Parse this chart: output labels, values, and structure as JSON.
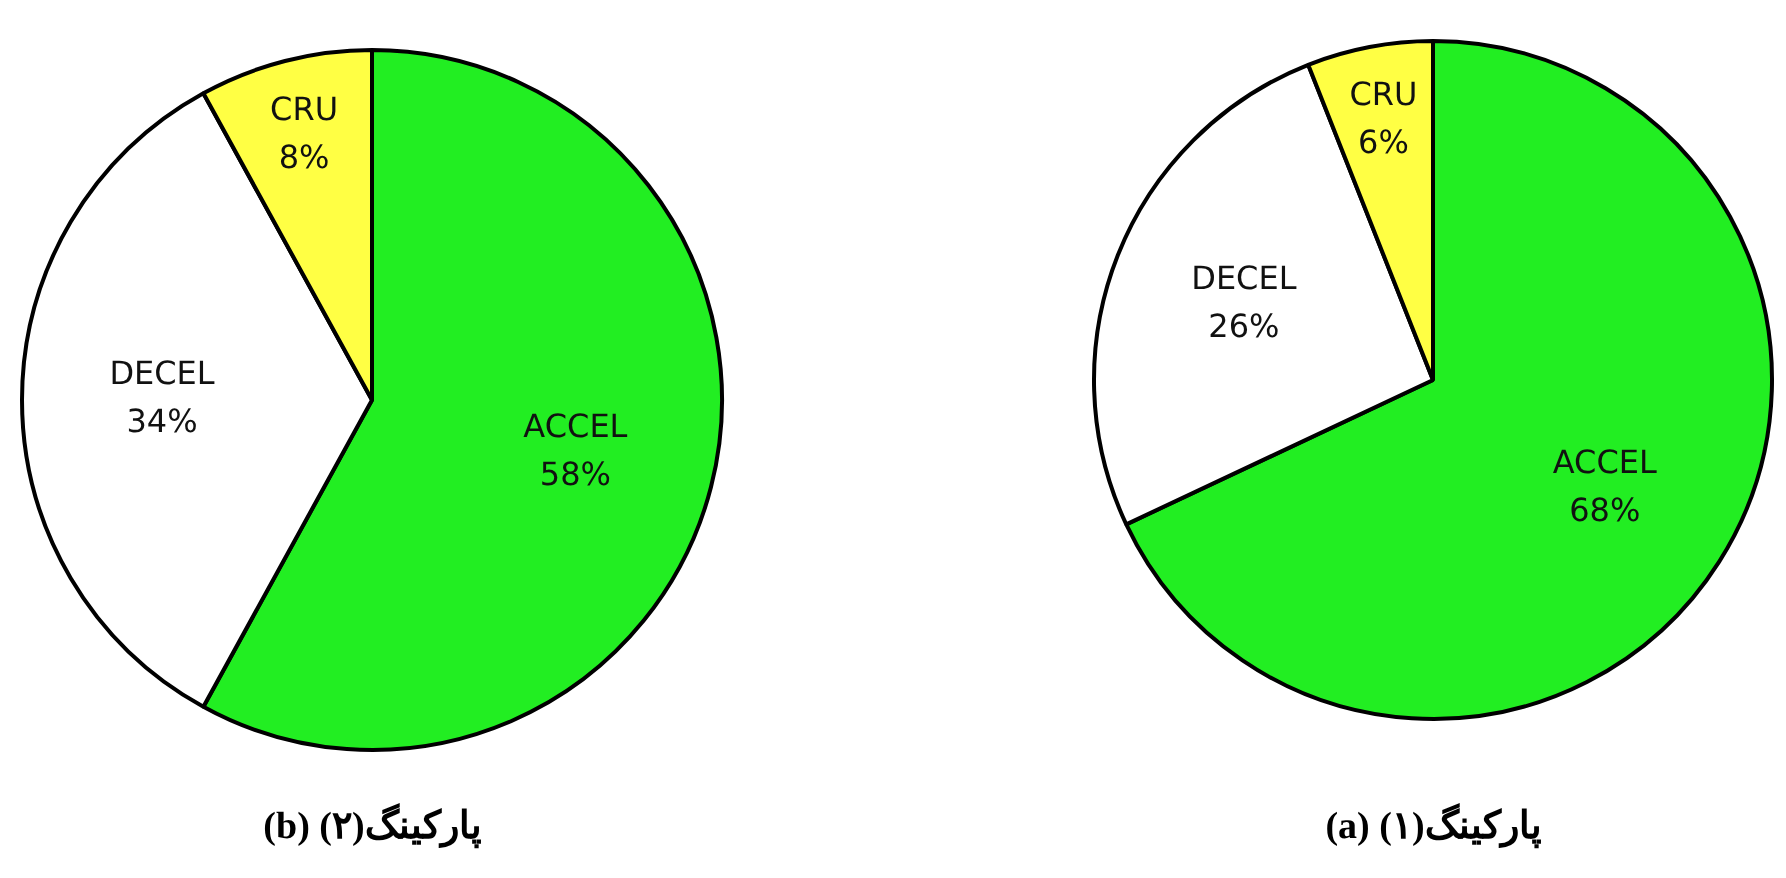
{
  "chart_data": [
    {
      "type": "pie",
      "title": "(b) پارکینگ(۲)",
      "categories": [
        "ACCEL",
        "DECEL",
        "CRU"
      ],
      "values": [
        58,
        34,
        8
      ],
      "colors": [
        "#22ee22",
        "#ffffff",
        "#ffff44"
      ],
      "value_labels": [
        "58%",
        "34%",
        "8%"
      ]
    },
    {
      "type": "pie",
      "title": "(a) پارکینگ(۱)",
      "categories": [
        "ACCEL",
        "DECEL",
        "CRU"
      ],
      "values": [
        68,
        26,
        6
      ],
      "colors": [
        "#22ee22",
        "#ffffff",
        "#ffff44"
      ],
      "value_labels": [
        "68%",
        "26%",
        "6%"
      ]
    }
  ]
}
